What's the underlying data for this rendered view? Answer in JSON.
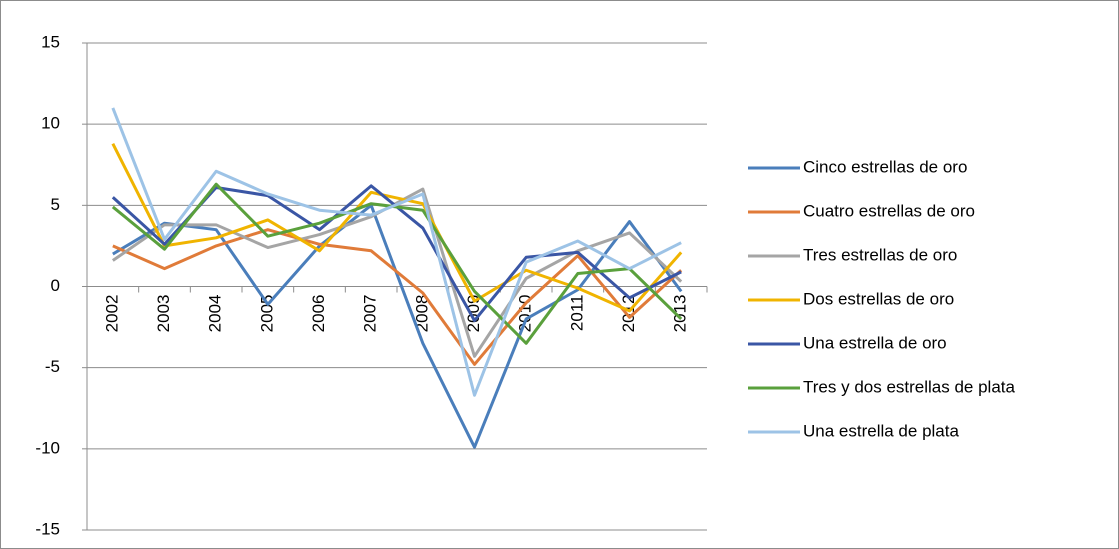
{
  "chart_data": {
    "type": "line",
    "categories": [
      "2002",
      "2003",
      "2004",
      "2005",
      "2006",
      "2007",
      "2008",
      "2009",
      "2010",
      "2011",
      "2012",
      "2013"
    ],
    "series": [
      {
        "name": "Cinco estrellas de oro",
        "color": "#4a7ebb",
        "values": [
          2.0,
          3.9,
          3.5,
          -1.1,
          2.5,
          5.0,
          -3.5,
          -9.9,
          -2.0,
          -0.2,
          4.0,
          -0.3
        ]
      },
      {
        "name": "Cuatro estrellas de oro",
        "color": "#e07b39",
        "values": [
          2.5,
          1.1,
          2.5,
          3.5,
          2.6,
          2.2,
          -0.4,
          -4.8,
          -1.0,
          1.9,
          -1.9,
          1.0
        ]
      },
      {
        "name": "Tres estrellas de oro",
        "color": "#a5a5a5",
        "values": [
          1.6,
          3.8,
          3.8,
          2.4,
          3.2,
          4.3,
          6.0,
          -4.3,
          0.5,
          2.2,
          3.3,
          0.3
        ]
      },
      {
        "name": "Dos estrellas de oro",
        "color": "#f0b400",
        "values": [
          8.8,
          2.5,
          3.0,
          4.1,
          2.2,
          5.8,
          5.1,
          -0.9,
          1.0,
          -0.1,
          -1.5,
          2.1
        ]
      },
      {
        "name": "Una estrella de oro",
        "color": "#3a56a5",
        "values": [
          5.5,
          2.6,
          6.1,
          5.6,
          3.5,
          6.2,
          3.6,
          -2.1,
          1.8,
          2.1,
          -0.7,
          0.9
        ]
      },
      {
        "name": "Tres y dos estrellas de plata",
        "color": "#5aa03c",
        "values": [
          4.9,
          2.3,
          6.3,
          3.1,
          3.9,
          5.1,
          4.7,
          -0.3,
          -3.5,
          0.8,
          1.1,
          -2.0
        ]
      },
      {
        "name": "Una estrella de plata",
        "color": "#9dc3e6",
        "values": [
          11.0,
          2.9,
          7.1,
          5.7,
          4.7,
          4.4,
          5.7,
          -6.7,
          1.5,
          2.8,
          1.1,
          2.7
        ]
      }
    ],
    "ylim": [
      -15,
      15
    ],
    "yticks": [
      -15,
      -10,
      -5,
      0,
      5,
      10,
      15
    ],
    "grid": true,
    "legend": "right"
  }
}
